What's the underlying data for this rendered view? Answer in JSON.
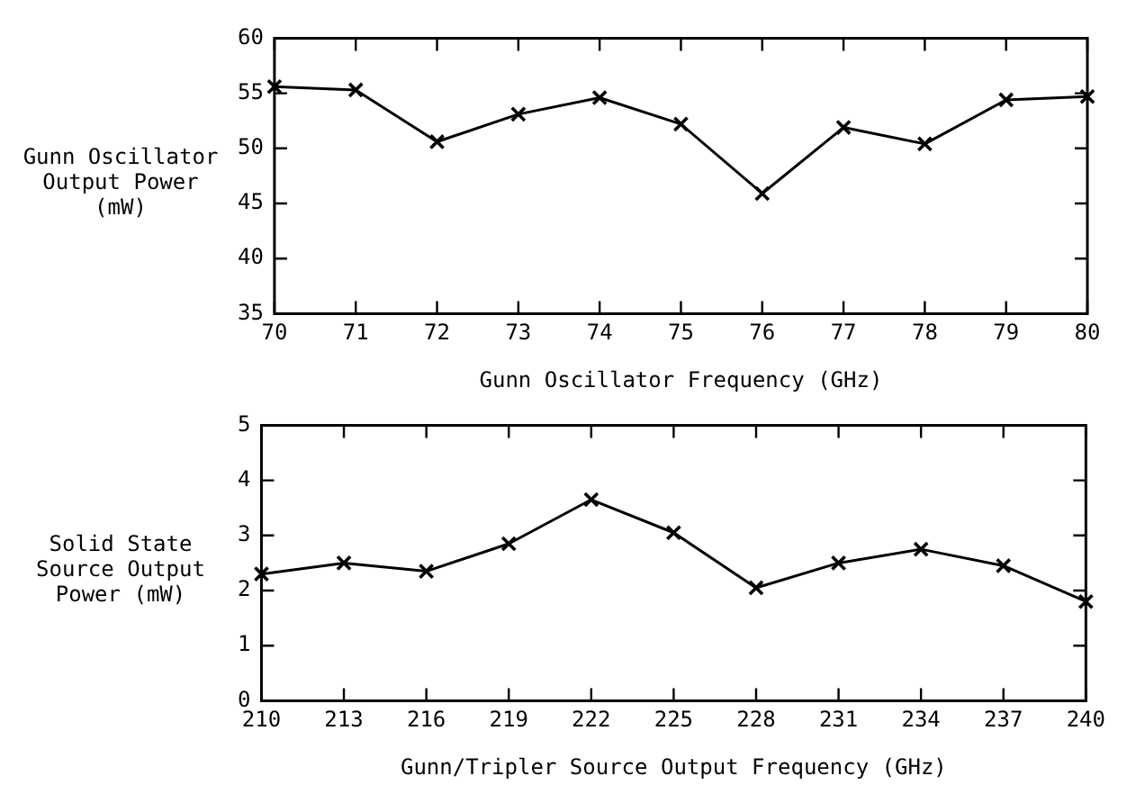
{
  "chart_data": [
    {
      "type": "line",
      "xlabel": "Gunn Oscillator Frequency (GHz)",
      "ylabel": "Gunn Oscillator Output Power (mW)",
      "x": [
        70,
        71,
        72,
        73,
        74,
        75,
        76,
        77,
        78,
        79,
        80
      ],
      "series": [
        {
          "color": "#000000",
          "values": [
            55.6,
            55.3,
            50.6,
            53.1,
            54.6,
            52.2,
            45.9,
            51.9,
            50.4,
            54.4,
            54.7
          ]
        }
      ],
      "xlim": [
        70,
        80
      ],
      "xticks": [
        70,
        71,
        72,
        73,
        74,
        75,
        76,
        77,
        78,
        79,
        80
      ],
      "ylim": [
        35,
        60
      ],
      "yticks": [
        35,
        40,
        45,
        50,
        55,
        60
      ],
      "grid": false,
      "legend": false,
      "marker": "cross",
      "line_style": "solid"
    },
    {
      "type": "line",
      "xlabel": "Gunn/Tripler Source Output Frequency (GHz)",
      "ylabel": "Solid State Source Output Power (mW)",
      "x": [
        210,
        213,
        216,
        219,
        222,
        225,
        228,
        231,
        234,
        237,
        240
      ],
      "series": [
        {
          "color": "#000000",
          "values": [
            2.3,
            2.5,
            2.35,
            2.85,
            3.65,
            3.05,
            2.05,
            2.5,
            2.75,
            2.45,
            1.8
          ]
        }
      ],
      "xlim": [
        210,
        240
      ],
      "xticks": [
        210,
        213,
        216,
        219,
        222,
        225,
        228,
        231,
        234,
        237,
        240
      ],
      "ylim": [
        0,
        5
      ],
      "yticks": [
        0,
        1,
        2,
        3,
        4,
        5
      ],
      "grid": false,
      "legend": false,
      "marker": "cross",
      "line_style": "solid"
    }
  ]
}
